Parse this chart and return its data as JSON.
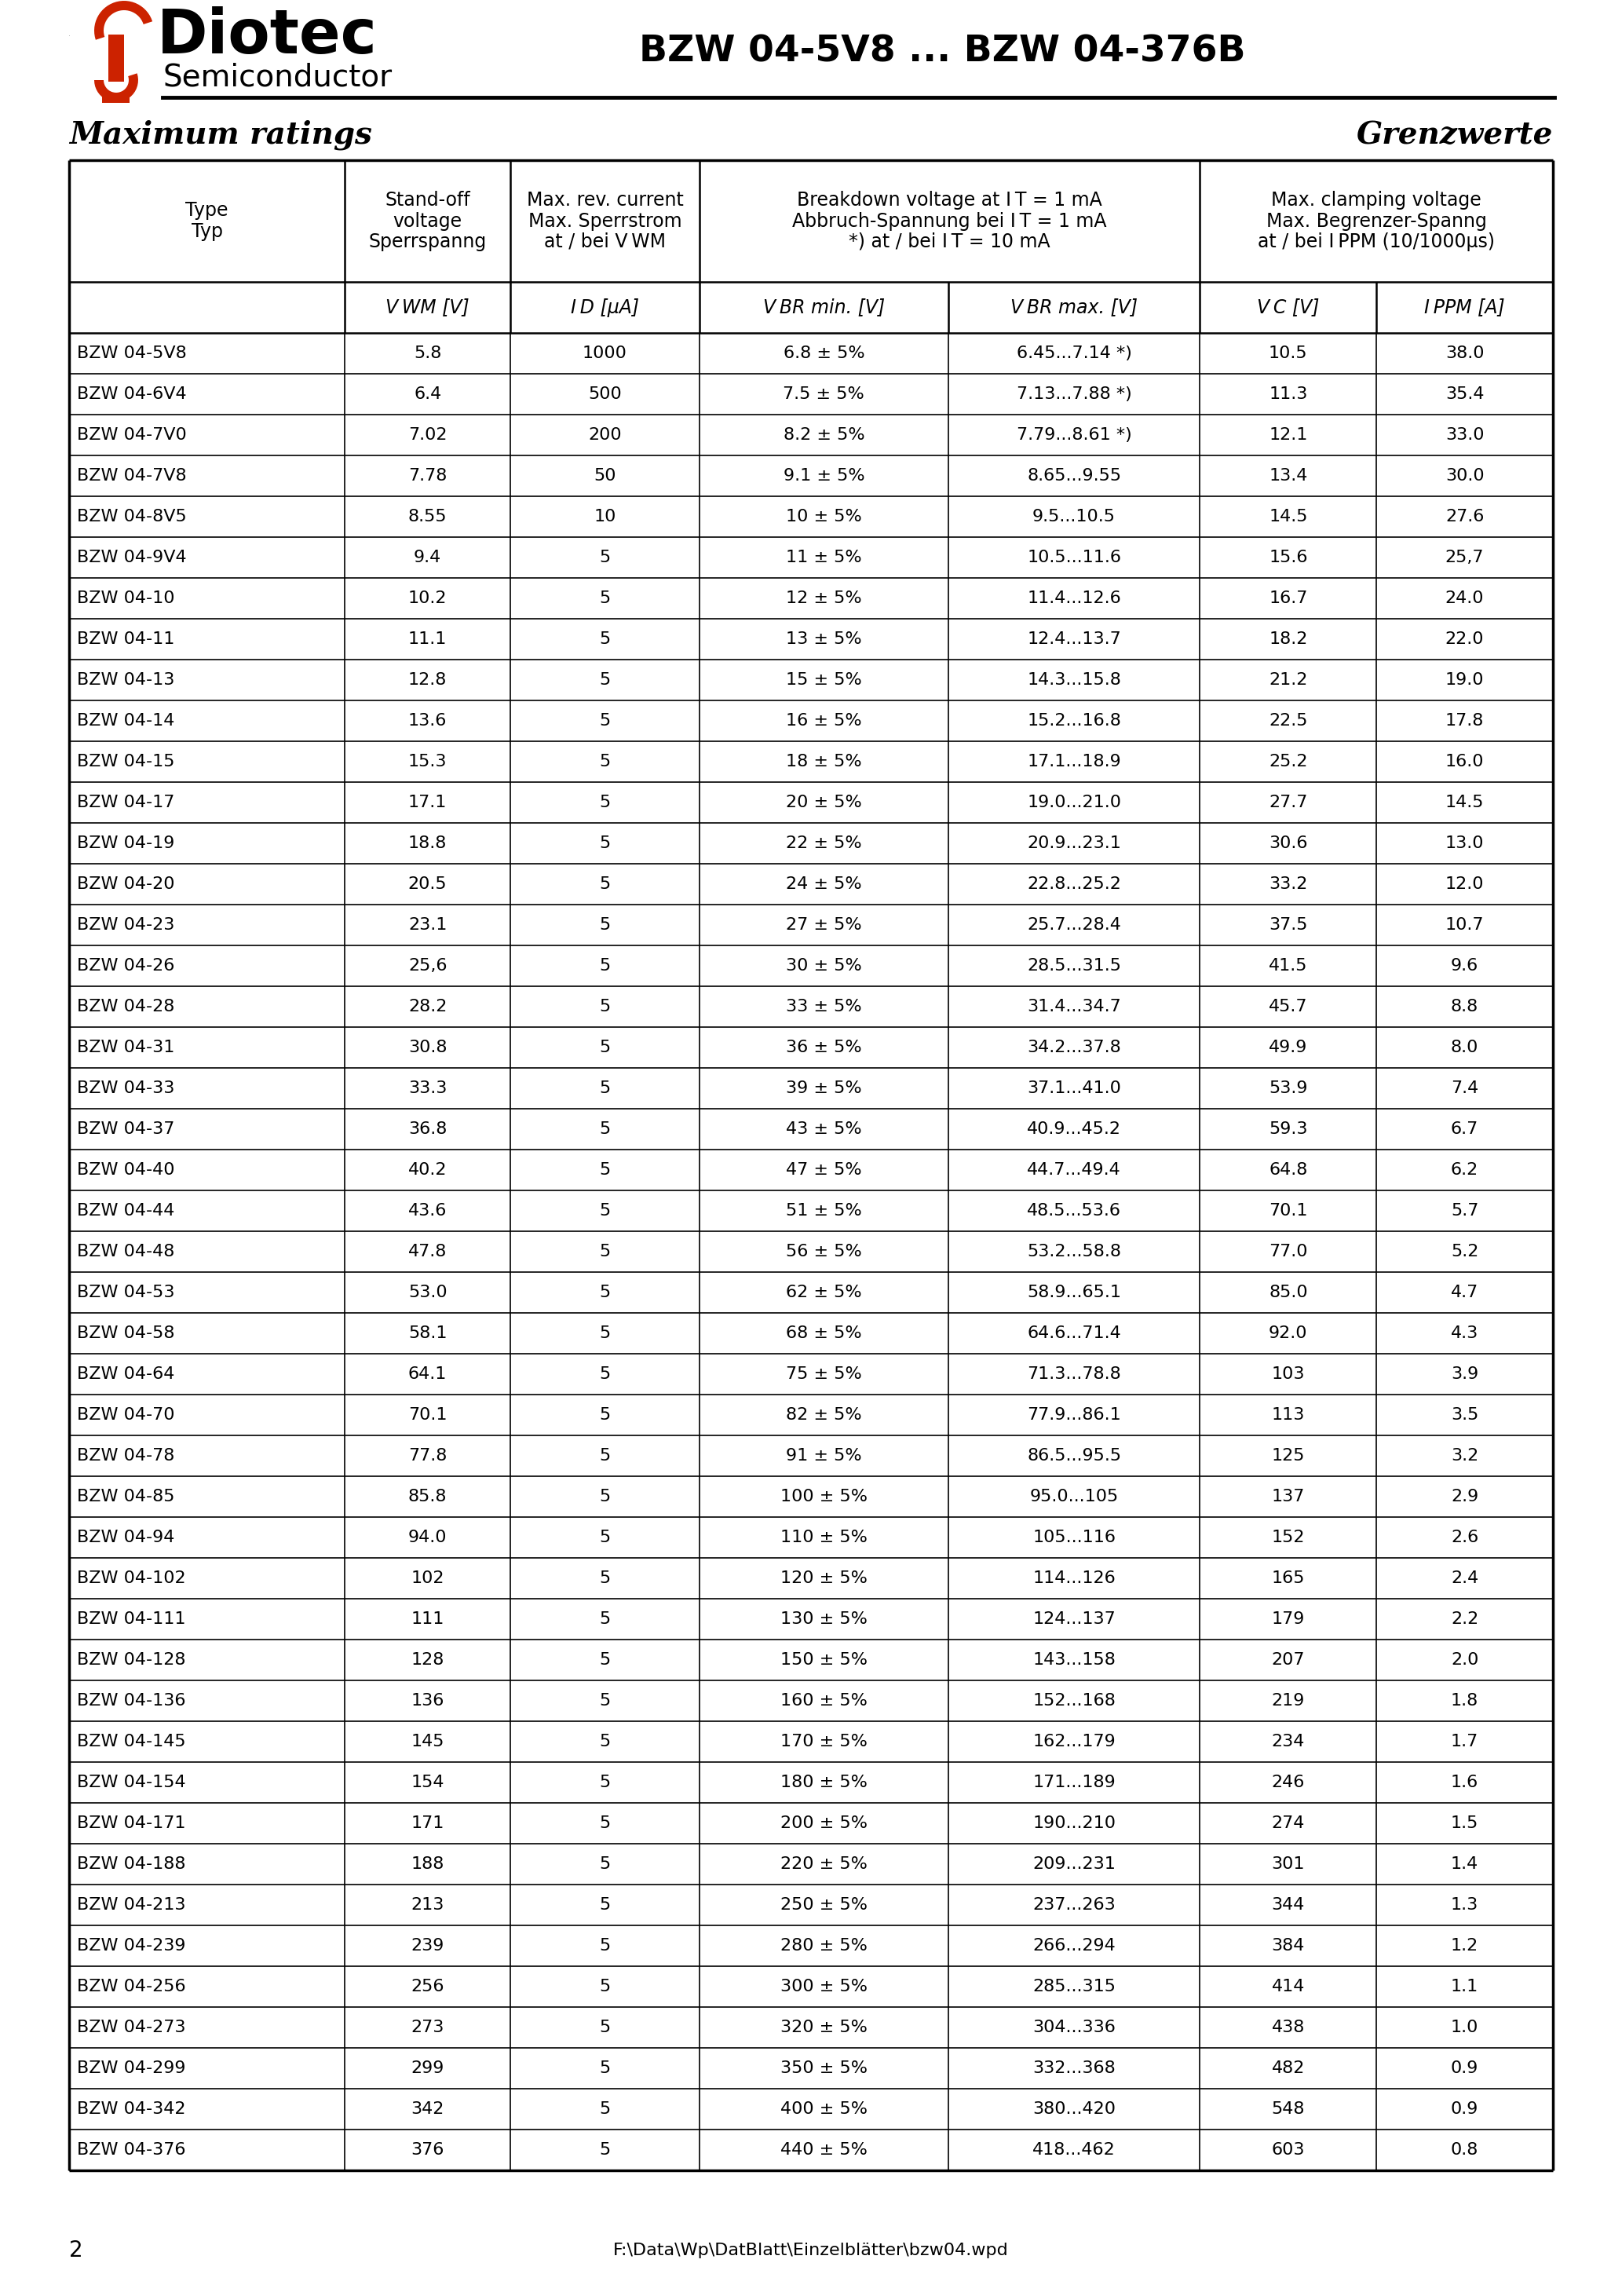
{
  "title": "BZW 04-5V8 ... BZW 04-376B",
  "section_left": "Maximum ratings",
  "section_right": "Grenzwerte",
  "page_number": "2",
  "footer_text": "F:\\Data\\Wp\\DatBlatt\\Einzelblätter\\bzw04.wpd",
  "rows": [
    [
      "BZW 04-5V8",
      "5.8",
      "1000",
      "6.8 ± 5%",
      "6.45...7.14 *)",
      "10.5",
      "38.0"
    ],
    [
      "BZW 04-6V4",
      "6.4",
      "500",
      "7.5 ± 5%",
      "7.13...7.88 *)",
      "11.3",
      "35.4"
    ],
    [
      "BZW 04-7V0",
      "7.02",
      "200",
      "8.2 ± 5%",
      "7.79...8.61 *)",
      "12.1",
      "33.0"
    ],
    [
      "BZW 04-7V8",
      "7.78",
      "50",
      "9.1 ± 5%",
      "8.65...9.55",
      "13.4",
      "30.0"
    ],
    [
      "BZW 04-8V5",
      "8.55",
      "10",
      "10 ± 5%",
      "9.5...10.5",
      "14.5",
      "27.6"
    ],
    [
      "BZW 04-9V4",
      "9.4",
      "5",
      "11 ± 5%",
      "10.5...11.6",
      "15.6",
      "25,7"
    ],
    [
      "BZW 04-10",
      "10.2",
      "5",
      "12 ± 5%",
      "11.4...12.6",
      "16.7",
      "24.0"
    ],
    [
      "BZW 04-11",
      "11.1",
      "5",
      "13 ± 5%",
      "12.4...13.7",
      "18.2",
      "22.0"
    ],
    [
      "BZW 04-13",
      "12.8",
      "5",
      "15 ± 5%",
      "14.3...15.8",
      "21.2",
      "19.0"
    ],
    [
      "BZW 04-14",
      "13.6",
      "5",
      "16 ± 5%",
      "15.2...16.8",
      "22.5",
      "17.8"
    ],
    [
      "BZW 04-15",
      "15.3",
      "5",
      "18 ± 5%",
      "17.1...18.9",
      "25.2",
      "16.0"
    ],
    [
      "BZW 04-17",
      "17.1",
      "5",
      "20 ± 5%",
      "19.0...21.0",
      "27.7",
      "14.5"
    ],
    [
      "BZW 04-19",
      "18.8",
      "5",
      "22 ± 5%",
      "20.9...23.1",
      "30.6",
      "13.0"
    ],
    [
      "BZW 04-20",
      "20.5",
      "5",
      "24 ± 5%",
      "22.8...25.2",
      "33.2",
      "12.0"
    ],
    [
      "BZW 04-23",
      "23.1",
      "5",
      "27 ± 5%",
      "25.7...28.4",
      "37.5",
      "10.7"
    ],
    [
      "BZW 04-26",
      "25,6",
      "5",
      "30 ± 5%",
      "28.5...31.5",
      "41.5",
      "9.6"
    ],
    [
      "BZW 04-28",
      "28.2",
      "5",
      "33 ± 5%",
      "31.4...34.7",
      "45.7",
      "8.8"
    ],
    [
      "BZW 04-31",
      "30.8",
      "5",
      "36 ± 5%",
      "34.2...37.8",
      "49.9",
      "8.0"
    ],
    [
      "BZW 04-33",
      "33.3",
      "5",
      "39 ± 5%",
      "37.1...41.0",
      "53.9",
      "7.4"
    ],
    [
      "BZW 04-37",
      "36.8",
      "5",
      "43 ± 5%",
      "40.9...45.2",
      "59.3",
      "6.7"
    ],
    [
      "BZW 04-40",
      "40.2",
      "5",
      "47 ± 5%",
      "44.7...49.4",
      "64.8",
      "6.2"
    ],
    [
      "BZW 04-44",
      "43.6",
      "5",
      "51 ± 5%",
      "48.5...53.6",
      "70.1",
      "5.7"
    ],
    [
      "BZW 04-48",
      "47.8",
      "5",
      "56 ± 5%",
      "53.2...58.8",
      "77.0",
      "5.2"
    ],
    [
      "BZW 04-53",
      "53.0",
      "5",
      "62 ± 5%",
      "58.9...65.1",
      "85.0",
      "4.7"
    ],
    [
      "BZW 04-58",
      "58.1",
      "5",
      "68 ± 5%",
      "64.6...71.4",
      "92.0",
      "4.3"
    ],
    [
      "BZW 04-64",
      "64.1",
      "5",
      "75 ± 5%",
      "71.3...78.8",
      "103",
      "3.9"
    ],
    [
      "BZW 04-70",
      "70.1",
      "5",
      "82 ± 5%",
      "77.9...86.1",
      "113",
      "3.5"
    ],
    [
      "BZW 04-78",
      "77.8",
      "5",
      "91 ± 5%",
      "86.5...95.5",
      "125",
      "3.2"
    ],
    [
      "BZW 04-85",
      "85.8",
      "5",
      "100 ± 5%",
      "95.0...105",
      "137",
      "2.9"
    ],
    [
      "BZW 04-94",
      "94.0",
      "5",
      "110 ± 5%",
      "105...116",
      "152",
      "2.6"
    ],
    [
      "BZW 04-102",
      "102",
      "5",
      "120 ± 5%",
      "114...126",
      "165",
      "2.4"
    ],
    [
      "BZW 04-111",
      "111",
      "5",
      "130 ± 5%",
      "124...137",
      "179",
      "2.2"
    ],
    [
      "BZW 04-128",
      "128",
      "5",
      "150 ± 5%",
      "143...158",
      "207",
      "2.0"
    ],
    [
      "BZW 04-136",
      "136",
      "5",
      "160 ± 5%",
      "152...168",
      "219",
      "1.8"
    ],
    [
      "BZW 04-145",
      "145",
      "5",
      "170 ± 5%",
      "162...179",
      "234",
      "1.7"
    ],
    [
      "BZW 04-154",
      "154",
      "5",
      "180 ± 5%",
      "171...189",
      "246",
      "1.6"
    ],
    [
      "BZW 04-171",
      "171",
      "5",
      "200 ± 5%",
      "190...210",
      "274",
      "1.5"
    ],
    [
      "BZW 04-188",
      "188",
      "5",
      "220 ± 5%",
      "209...231",
      "301",
      "1.4"
    ],
    [
      "BZW 04-213",
      "213",
      "5",
      "250 ± 5%",
      "237...263",
      "344",
      "1.3"
    ],
    [
      "BZW 04-239",
      "239",
      "5",
      "280 ± 5%",
      "266...294",
      "384",
      "1.2"
    ],
    [
      "BZW 04-256",
      "256",
      "5",
      "300 ± 5%",
      "285...315",
      "414",
      "1.1"
    ],
    [
      "BZW 04-273",
      "273",
      "5",
      "320 ± 5%",
      "304...336",
      "438",
      "1.0"
    ],
    [
      "BZW 04-299",
      "299",
      "5",
      "350 ± 5%",
      "332...368",
      "482",
      "0.9"
    ],
    [
      "BZW 04-342",
      "342",
      "5",
      "400 ± 5%",
      "380...420",
      "548",
      "0.9"
    ],
    [
      "BZW 04-376",
      "376",
      "5",
      "440 ± 5%",
      "418...462",
      "603",
      "0.8"
    ]
  ],
  "logo_red": "#cc2200",
  "bg": "#ffffff"
}
